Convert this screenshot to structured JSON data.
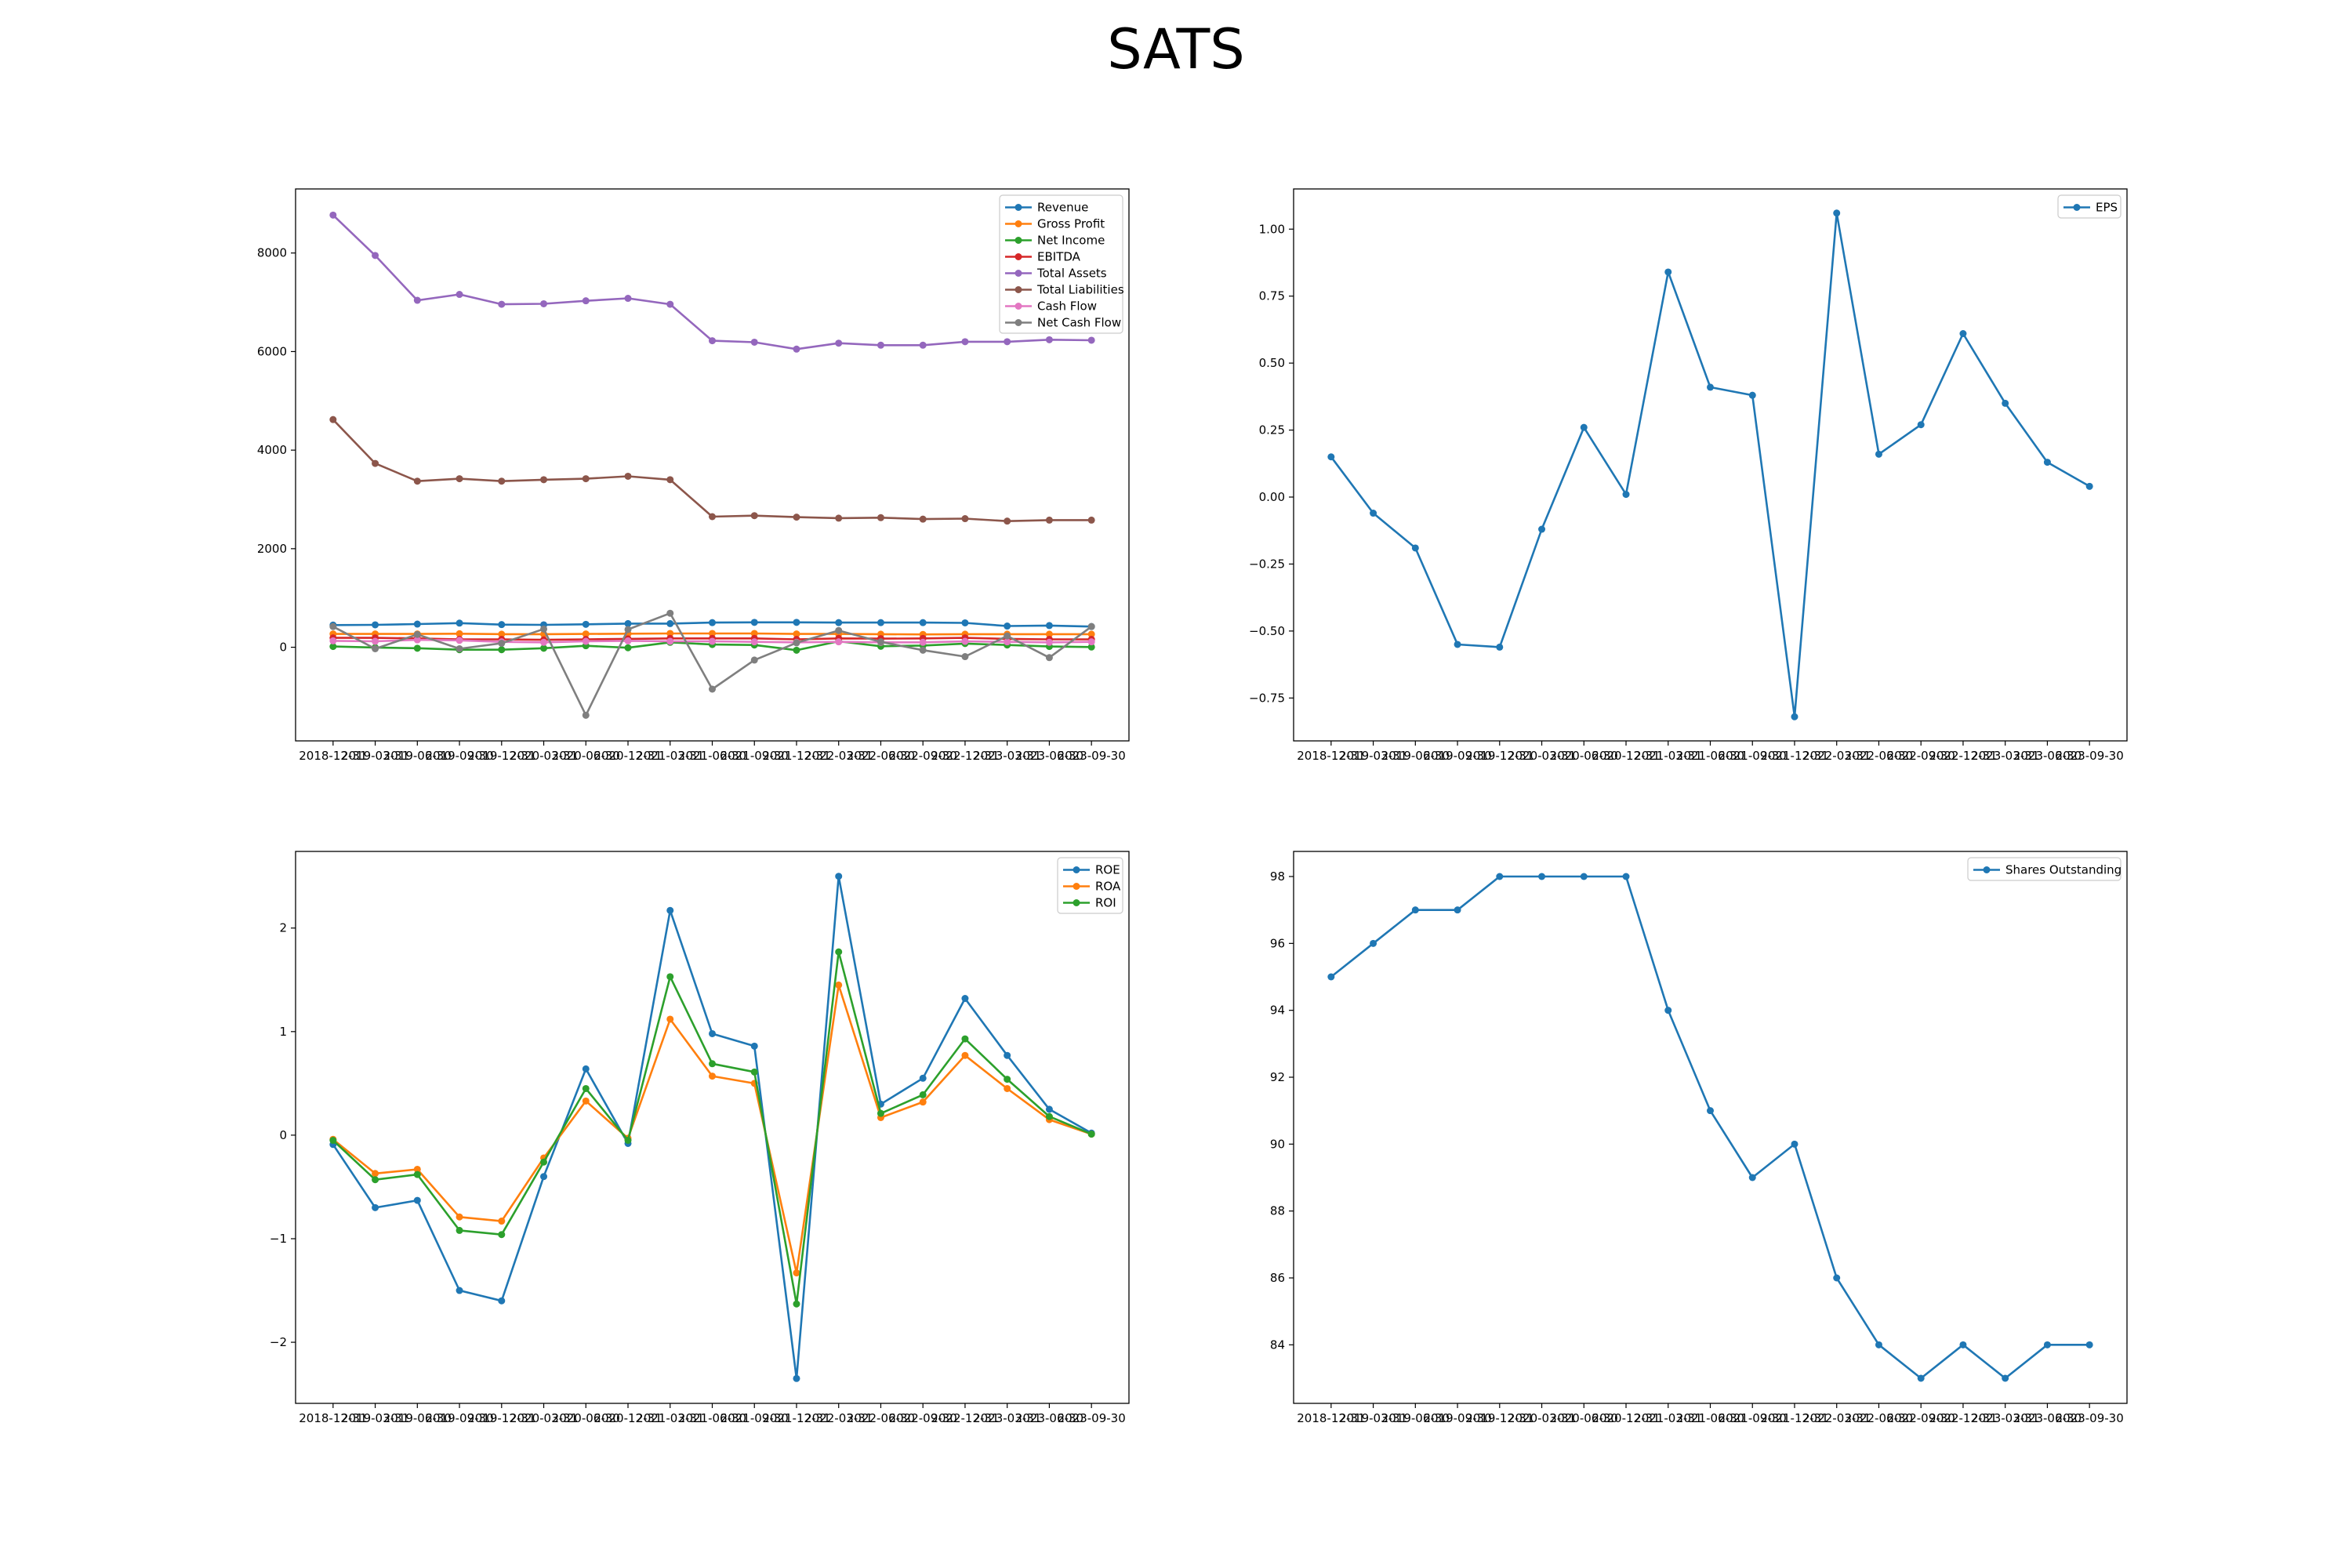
{
  "figure_title": "SATS",
  "chart_data": [
    {
      "type": "line",
      "x": [
        "2018-12-31",
        "2019-03-31",
        "2019-06-30",
        "2019-09-30",
        "2019-12-31",
        "2020-03-31",
        "2020-06-30",
        "2020-12-31",
        "2021-03-31",
        "2021-06-30",
        "2021-09-30",
        "2021-12-31",
        "2022-03-31",
        "2022-06-30",
        "2022-09-30",
        "2022-12-31",
        "2023-03-31",
        "2023-06-30",
        "2023-09-30"
      ],
      "ylim": [
        -1900,
        9300
      ],
      "yticks": [
        0,
        2000,
        4000,
        6000,
        8000
      ],
      "legend": "top-right",
      "grid": false,
      "series": [
        {
          "name": "Revenue",
          "color": "#1f77b4",
          "values": [
            450,
            455,
            470,
            490,
            460,
            455,
            465,
            480,
            480,
            500,
            505,
            505,
            500,
            500,
            500,
            495,
            430,
            440,
            420
          ]
        },
        {
          "name": "Gross Profit",
          "color": "#ff7f0e",
          "values": [
            270,
            270,
            270,
            275,
            265,
            265,
            270,
            275,
            280,
            280,
            280,
            270,
            270,
            265,
            260,
            265,
            265,
            265,
            265
          ]
        },
        {
          "name": "Net Income",
          "color": "#2ca02c",
          "values": [
            15,
            -5,
            -20,
            -50,
            -50,
            -20,
            30,
            -10,
            100,
            55,
            45,
            -60,
            120,
            20,
            35,
            75,
            45,
            15,
            5
          ]
        },
        {
          "name": "EBITDA",
          "color": "#d62728",
          "values": [
            190,
            190,
            180,
            160,
            160,
            150,
            160,
            170,
            180,
            180,
            180,
            160,
            180,
            175,
            180,
            190,
            170,
            160,
            160
          ]
        },
        {
          "name": "Total Assets",
          "color": "#9467bd",
          "values": [
            8770,
            7950,
            7040,
            7160,
            6960,
            6970,
            7030,
            7080,
            6960,
            6220,
            6190,
            6050,
            6170,
            6130,
            6130,
            6200,
            6200,
            6240,
            6230
          ]
        },
        {
          "name": "Total Liabilities",
          "color": "#8c564b",
          "values": [
            4620,
            3730,
            3370,
            3420,
            3370,
            3400,
            3420,
            3470,
            3400,
            2650,
            2670,
            2640,
            2620,
            2630,
            2600,
            2610,
            2560,
            2580,
            2580
          ]
        },
        {
          "name": "Cash Flow",
          "color": "#e377c2",
          "values": [
            130,
            120,
            150,
            140,
            110,
            100,
            120,
            130,
            120,
            120,
            110,
            100,
            110,
            100,
            100,
            120,
            110,
            100,
            110
          ]
        },
        {
          "name": "Net Cash Flow",
          "color": "#7f7f7f",
          "values": [
            420,
            -30,
            260,
            -30,
            80,
            370,
            -1380,
            360,
            690,
            -850,
            -260,
            90,
            340,
            110,
            -60,
            -190,
            230,
            -210,
            420
          ]
        }
      ]
    },
    {
      "type": "line",
      "x": [
        "2018-12-31",
        "2019-03-31",
        "2019-06-30",
        "2019-09-30",
        "2019-12-31",
        "2020-03-31",
        "2020-06-30",
        "2020-12-31",
        "2021-03-31",
        "2021-06-30",
        "2021-09-30",
        "2021-12-31",
        "2022-03-31",
        "2022-06-30",
        "2022-09-30",
        "2022-12-31",
        "2023-03-31",
        "2023-06-30",
        "2023-09-30"
      ],
      "ylim": [
        -0.91,
        1.15
      ],
      "yticks": [
        -0.75,
        -0.5,
        -0.25,
        0.0,
        0.25,
        0.5,
        0.75,
        1.0
      ],
      "yticklabels": [
        "−0.75",
        "−0.50",
        "−0.25",
        "0.00",
        "0.25",
        "0.50",
        "0.75",
        "1.00"
      ],
      "legend": "top-right",
      "grid": false,
      "series": [
        {
          "name": "EPS",
          "color": "#1f77b4",
          "values": [
            0.15,
            -0.06,
            -0.19,
            -0.55,
            -0.56,
            -0.12,
            0.26,
            0.01,
            0.84,
            0.41,
            0.38,
            -0.82,
            1.06,
            0.16,
            0.27,
            0.61,
            0.35,
            0.13,
            0.04
          ]
        }
      ]
    },
    {
      "type": "line",
      "x": [
        "2018-12-31",
        "2019-03-31",
        "2019-06-30",
        "2019-09-30",
        "2019-12-31",
        "2020-03-31",
        "2020-06-30",
        "2020-12-31",
        "2021-03-31",
        "2021-06-30",
        "2021-09-30",
        "2021-12-31",
        "2022-03-31",
        "2022-06-30",
        "2022-09-30",
        "2022-12-31",
        "2023-03-31",
        "2023-06-30",
        "2023-09-30"
      ],
      "ylim": [
        -2.59,
        2.74
      ],
      "yticks": [
        -2,
        -1,
        0,
        1,
        2
      ],
      "yticklabels": [
        "−2",
        "−1",
        "0",
        "1",
        "2"
      ],
      "legend": "top-right",
      "grid": false,
      "series": [
        {
          "name": "ROE",
          "color": "#1f77b4",
          "values": [
            -0.09,
            -0.7,
            -0.63,
            -1.5,
            -1.6,
            -0.4,
            0.64,
            -0.08,
            2.17,
            0.98,
            0.86,
            -2.35,
            2.5,
            0.3,
            0.55,
            1.32,
            0.77,
            0.25,
            0.02
          ]
        },
        {
          "name": "ROA",
          "color": "#ff7f0e",
          "values": [
            -0.04,
            -0.37,
            -0.33,
            -0.79,
            -0.83,
            -0.22,
            0.33,
            -0.03,
            1.12,
            0.57,
            0.5,
            -1.33,
            1.45,
            0.17,
            0.32,
            0.77,
            0.45,
            0.15,
            0.01
          ]
        },
        {
          "name": "ROI",
          "color": "#2ca02c",
          "values": [
            -0.05,
            -0.43,
            -0.38,
            -0.92,
            -0.96,
            -0.26,
            0.45,
            -0.05,
            1.53,
            0.69,
            0.61,
            -1.63,
            1.77,
            0.21,
            0.39,
            0.93,
            0.54,
            0.18,
            0.01
          ]
        }
      ]
    },
    {
      "type": "line",
      "x": [
        "2018-12-31",
        "2019-03-31",
        "2019-06-30",
        "2019-09-30",
        "2019-12-31",
        "2020-03-31",
        "2020-06-30",
        "2020-12-31",
        "2021-03-31",
        "2021-06-30",
        "2021-09-30",
        "2021-12-31",
        "2022-03-31",
        "2022-06-30",
        "2022-09-30",
        "2022-12-31",
        "2023-03-31",
        "2023-06-30",
        "2023-09-30"
      ],
      "ylim": [
        82.25,
        98.75
      ],
      "yticks": [
        84,
        86,
        88,
        90,
        92,
        94,
        96,
        98
      ],
      "legend": "top-right",
      "grid": false,
      "series": [
        {
          "name": "Shares Outstanding",
          "color": "#1f77b4",
          "values": [
            95,
            96,
            97,
            97,
            98,
            98,
            98,
            98,
            94,
            91,
            89,
            90,
            86,
            84,
            83,
            84,
            83,
            84,
            84
          ]
        }
      ]
    }
  ]
}
